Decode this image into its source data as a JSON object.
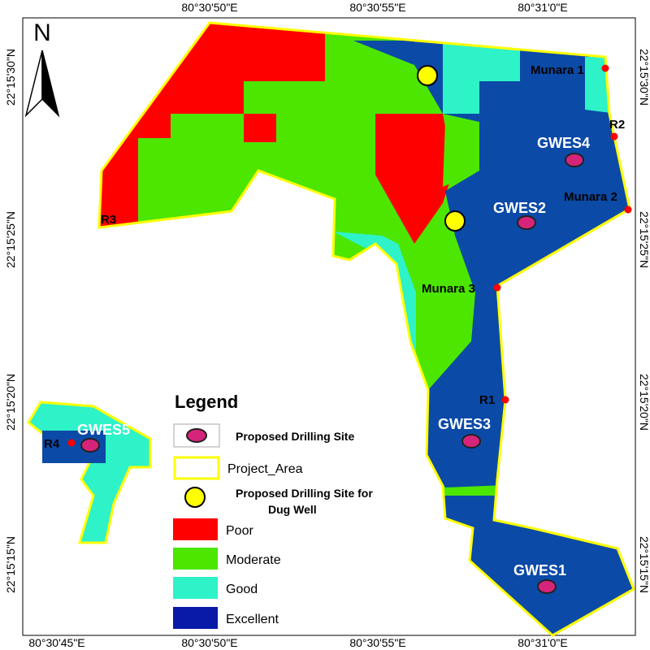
{
  "north_arrow": "N",
  "graticule": {
    "top": [
      "80°30'50\"E",
      "80°30'55\"E",
      "80°31'0\"E"
    ],
    "bottom": [
      "80°30'45\"E",
      "80°30'50\"E",
      "80°30'55\"E",
      "80°31'0\"E"
    ],
    "left": [
      "22°15'30\"N",
      "22°15'25\"N",
      "22°15'20\"N",
      "22°15'15\"N"
    ],
    "right": [
      "22°15'30\"N",
      "22°15'25\"N",
      "22°15'20\"N",
      "22°15'15\"N"
    ]
  },
  "points": [
    "Munara 1",
    "R2",
    "Munara 2",
    "R3",
    "Munara 3",
    "R1",
    "R4"
  ],
  "sites": [
    "GWES4",
    "GWES2",
    "GWES3",
    "GWES5",
    "GWES1"
  ],
  "legend": {
    "title": "Legend",
    "items": [
      "Proposed Drilling Site",
      "Project_Area",
      "Proposed Drilling Site for",
      "Dug Well",
      "Poor",
      "Moderate",
      "Good",
      "Excellent"
    ]
  }
}
